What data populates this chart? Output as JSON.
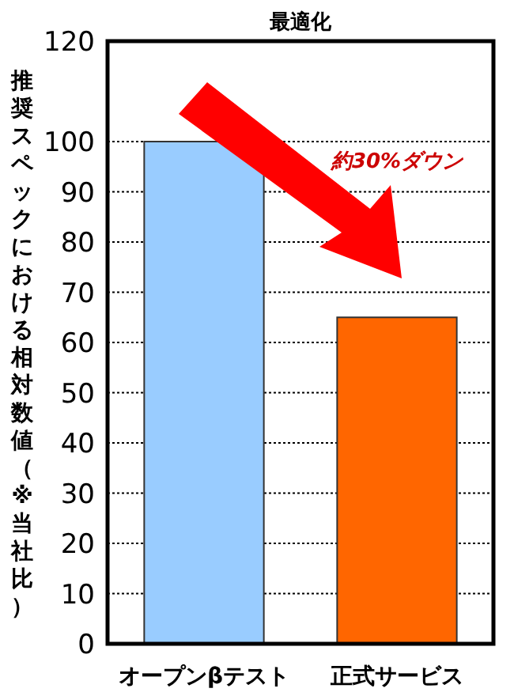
{
  "chart_data": {
    "type": "bar",
    "title": "最適化",
    "ylabel": "推奨スペックにおける相対数値（※当社比）",
    "categories": [
      "オープンβテスト",
      "正式サービス"
    ],
    "values": [
      100,
      65
    ],
    "colors": [
      "#99ccff",
      "#ff6600"
    ],
    "ylim": [
      0,
      120
    ],
    "yticks": [
      0,
      10,
      20,
      30,
      40,
      50,
      60,
      70,
      80,
      90,
      100,
      120
    ],
    "grid": "y",
    "annotations": [
      "約30%ダウン"
    ]
  }
}
